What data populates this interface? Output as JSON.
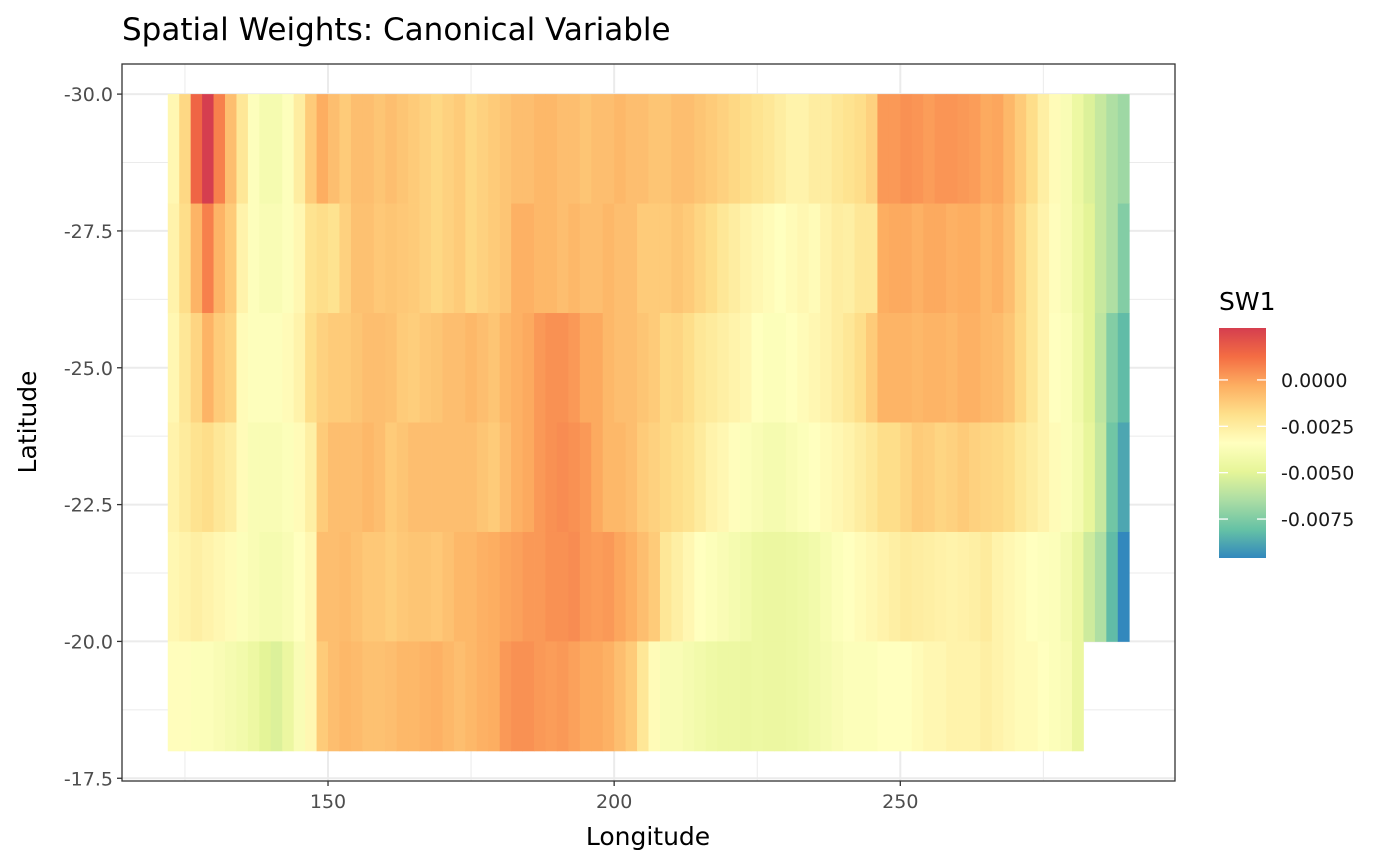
{
  "chart_data": {
    "type": "heatmap",
    "title": "Spatial Weights: Canonical Variable",
    "xlabel": "Longitude",
    "ylabel": "Latitude",
    "xlim": [
      114,
      298
    ],
    "ylim": [
      -30.55,
      -17.45
    ],
    "y_reversed": true,
    "x_ticks": [
      {
        "value": 150,
        "label": "150"
      },
      {
        "value": 200,
        "label": "200"
      },
      {
        "value": 250,
        "label": "250"
      }
    ],
    "y_ticks": [
      {
        "value": -30.0,
        "label": "-30.0"
      },
      {
        "value": -27.5,
        "label": "-27.5"
      },
      {
        "value": -25.0,
        "label": "-25.0"
      },
      {
        "value": -22.5,
        "label": "-22.5"
      },
      {
        "value": -20.0,
        "label": "-20.0"
      },
      {
        "value": -17.5,
        "label": "-17.5"
      }
    ],
    "grid": true,
    "cell_width": 2,
    "cell_height": 2,
    "row_latitudes": [
      -29,
      -27,
      -25,
      -23,
      -21,
      -19
    ],
    "column_longitudes": [
      123,
      125,
      127,
      129,
      131,
      133,
      135,
      137,
      139,
      141,
      143,
      145,
      147,
      149,
      151,
      153,
      155,
      157,
      159,
      161,
      163,
      165,
      167,
      169,
      171,
      173,
      175,
      177,
      179,
      181,
      183,
      185,
      187,
      189,
      191,
      193,
      195,
      197,
      199,
      201,
      203,
      205,
      207,
      209,
      211,
      213,
      215,
      217,
      219,
      221,
      223,
      225,
      227,
      229,
      231,
      233,
      235,
      237,
      239,
      241,
      243,
      245,
      247,
      249,
      251,
      253,
      255,
      257,
      259,
      261,
      263,
      265,
      267,
      269,
      271,
      273,
      275,
      277,
      279,
      281,
      283,
      285,
      287,
      289
    ],
    "values": [
      [
        -0.003,
        -0.0016,
        0.0015,
        0.0028,
        0.0008,
        -0.0008,
        -0.0022,
        -0.0035,
        -0.004,
        -0.004,
        -0.0035,
        -0.0025,
        -0.0012,
        -0.0003,
        -0.0008,
        -0.0012,
        -0.0008,
        -0.0008,
        -0.001,
        -0.0008,
        -0.001,
        -0.0012,
        -0.0014,
        -0.0016,
        -0.0014,
        -0.0012,
        -0.0016,
        -0.0014,
        -0.0012,
        -0.001,
        -0.0008,
        -0.0008,
        -0.0006,
        -0.0006,
        -0.0008,
        -0.0008,
        -0.001,
        -0.0008,
        -0.0008,
        -0.0006,
        -0.0008,
        -0.0008,
        -0.001,
        -0.001,
        -0.0008,
        -0.0008,
        -0.001,
        -0.0012,
        -0.0014,
        -0.0016,
        -0.0018,
        -0.002,
        -0.0022,
        -0.0025,
        -0.0028,
        -0.0028,
        -0.0025,
        -0.0025,
        -0.0022,
        -0.002,
        -0.0018,
        -0.0014,
        0.0002,
        0.0002,
        0.0004,
        0.0003,
        0.0001,
        0.0003,
        0.0003,
        0.0002,
        0.0001,
        -0.0002,
        -0.0001,
        -0.0006,
        -0.0012,
        -0.0018,
        -0.0026,
        -0.0032,
        -0.0038,
        -0.0045,
        -0.0052,
        -0.0058,
        -0.0064,
        -0.0068
      ],
      [
        -0.0028,
        -0.0018,
        -0.0005,
        0.0008,
        -0.0005,
        -0.0012,
        -0.0028,
        -0.0035,
        -0.0038,
        -0.0038,
        -0.0035,
        -0.003,
        -0.002,
        -0.0018,
        -0.002,
        -0.0014,
        -0.0009,
        -0.0009,
        -0.0011,
        -0.001,
        -0.0011,
        -0.0012,
        -0.0014,
        -0.0016,
        -0.0014,
        -0.0012,
        -0.0016,
        -0.0014,
        -0.0012,
        -0.001,
        -0.0004,
        -0.0004,
        -0.0006,
        -0.0006,
        -0.0008,
        -0.0006,
        -0.0008,
        -0.0008,
        -0.0006,
        -0.0008,
        -0.0008,
        -0.0012,
        -0.0012,
        -0.0012,
        -0.001,
        -0.0012,
        -0.0015,
        -0.0018,
        -0.0022,
        -0.0025,
        -0.0028,
        -0.003,
        -0.0032,
        -0.0034,
        -0.0032,
        -0.003,
        -0.0032,
        -0.0028,
        -0.0025,
        -0.0026,
        -0.0022,
        -0.0022,
        -0.0003,
        -0.0002,
        -0.0002,
        -0.0004,
        -0.0002,
        -0.0002,
        -0.0004,
        -0.0003,
        -0.0003,
        -0.0006,
        -0.0004,
        -0.0008,
        -0.0015,
        -0.0022,
        -0.0028,
        -0.0033,
        -0.0038,
        -0.0044,
        -0.005,
        -0.0058,
        -0.0064,
        -0.0074
      ],
      [
        -0.003,
        -0.0022,
        -0.0015,
        -0.0005,
        -0.0012,
        -0.0015,
        -0.0032,
        -0.0035,
        -0.0035,
        -0.0035,
        -0.0032,
        -0.0028,
        -0.0018,
        -0.0014,
        -0.0012,
        -0.0012,
        -0.001,
        -0.0008,
        -0.0008,
        -0.0009,
        -0.0012,
        -0.0013,
        -0.0011,
        -0.001,
        -0.0008,
        -0.0008,
        -0.0006,
        -0.0008,
        -0.001,
        -0.0006,
        -0.0004,
        -0.0002,
        0.0002,
        0.0004,
        0.0004,
        0.0002,
        -0.0002,
        -0.0002,
        -0.0006,
        -0.0008,
        -0.0008,
        -0.001,
        -0.0012,
        -0.0016,
        -0.0015,
        -0.0018,
        -0.0022,
        -0.0024,
        -0.0026,
        -0.0028,
        -0.003,
        -0.0034,
        -0.0036,
        -0.0036,
        -0.0034,
        -0.0032,
        -0.003,
        -0.0028,
        -0.0025,
        -0.0022,
        -0.0018,
        -0.0012,
        -0.0005,
        -0.0005,
        -0.0005,
        -0.0006,
        -0.0005,
        -0.0005,
        -0.0006,
        -0.0004,
        -0.0004,
        -0.0006,
        -0.0007,
        -0.001,
        -0.0016,
        -0.0022,
        -0.0028,
        -0.0034,
        -0.0036,
        -0.0042,
        -0.005,
        -0.006,
        -0.0074,
        -0.0082
      ],
      [
        -0.0028,
        -0.0024,
        -0.002,
        -0.0018,
        -0.0022,
        -0.0025,
        -0.0032,
        -0.0038,
        -0.0038,
        -0.0038,
        -0.0036,
        -0.0032,
        -0.0026,
        -0.0012,
        -0.0008,
        -0.0008,
        -0.0008,
        -0.0006,
        -0.0008,
        -0.0012,
        -0.001,
        -0.0008,
        -0.0008,
        -0.0008,
        -0.0008,
        -0.0008,
        -0.0008,
        -0.001,
        -0.0012,
        -0.0008,
        -0.0004,
        -0.0002,
        0.0002,
        0.0004,
        0.0005,
        0.0004,
        0.0002,
        -0.0002,
        -0.0006,
        -0.0006,
        -0.0008,
        -0.0012,
        -0.0014,
        -0.0016,
        -0.0018,
        -0.002,
        -0.0024,
        -0.0028,
        -0.003,
        -0.0033,
        -0.0036,
        -0.0038,
        -0.004,
        -0.004,
        -0.0038,
        -0.0036,
        -0.0034,
        -0.0032,
        -0.003,
        -0.0028,
        -0.0025,
        -0.0022,
        -0.0018,
        -0.0018,
        -0.0015,
        -0.0012,
        -0.0013,
        -0.0015,
        -0.0014,
        -0.0012,
        -0.0014,
        -0.0015,
        -0.0016,
        -0.0018,
        -0.0022,
        -0.0025,
        -0.0028,
        -0.0032,
        -0.0036,
        -0.004,
        -0.0048,
        -0.0058,
        -0.0078,
        -0.0088
      ],
      [
        -0.003,
        -0.0028,
        -0.0026,
        -0.0028,
        -0.003,
        -0.0032,
        -0.0036,
        -0.0038,
        -0.004,
        -0.004,
        -0.0038,
        -0.0034,
        -0.003,
        -0.0008,
        -0.0008,
        -0.0007,
        -0.0009,
        -0.0011,
        -0.0011,
        -0.0013,
        -0.0011,
        -0.001,
        -0.001,
        -0.0011,
        -0.0009,
        -0.0006,
        -0.0006,
        -0.0004,
        -0.0003,
        -0.0001,
        0.0,
        0.0002,
        0.0002,
        0.0004,
        0.0004,
        0.0005,
        0.0002,
        0.0001,
        0.0002,
        -0.0001,
        -0.0004,
        -0.0008,
        -0.0012,
        -0.0022,
        -0.0026,
        -0.003,
        -0.0034,
        -0.0036,
        -0.0038,
        -0.004,
        -0.0042,
        -0.0045,
        -0.0046,
        -0.0046,
        -0.0045,
        -0.0044,
        -0.0042,
        -0.0039,
        -0.0036,
        -0.0034,
        -0.0032,
        -0.003,
        -0.0028,
        -0.0026,
        -0.0024,
        -0.0025,
        -0.0026,
        -0.0027,
        -0.0028,
        -0.0027,
        -0.0026,
        -0.0024,
        -0.0028,
        -0.003,
        -0.0032,
        -0.0034,
        -0.0035,
        -0.0036,
        -0.004,
        -0.0046,
        -0.0056,
        -0.0064,
        -0.0082,
        -0.0096
      ],
      [
        -0.0033,
        -0.0033,
        -0.0036,
        -0.0036,
        -0.0038,
        -0.004,
        -0.0042,
        -0.0045,
        -0.005,
        -0.0052,
        -0.0046,
        -0.0038,
        -0.003,
        -0.0012,
        -0.0008,
        -0.0006,
        -0.0007,
        -0.0009,
        -0.0009,
        -0.0008,
        -0.0006,
        -0.0006,
        -0.0005,
        -0.0004,
        -0.0006,
        -0.0008,
        -0.0006,
        -0.0004,
        -0.0003,
        0.0002,
        0.0004,
        0.0004,
        0.0002,
        0.0001,
        0.0002,
        0.0,
        -0.0002,
        -0.0002,
        -0.0004,
        -0.0008,
        -0.0012,
        -0.0022,
        -0.0032,
        -0.0038,
        -0.0038,
        -0.004,
        -0.0042,
        -0.0044,
        -0.0045,
        -0.0045,
        -0.0046,
        -0.0045,
        -0.0046,
        -0.0046,
        -0.0045,
        -0.0044,
        -0.0042,
        -0.004,
        -0.0038,
        -0.0036,
        -0.0036,
        -0.0036,
        -0.0034,
        -0.0034,
        -0.0034,
        -0.0032,
        -0.003,
        -0.003,
        -0.0028,
        -0.0028,
        -0.0028,
        -0.0026,
        -0.0028,
        -0.003,
        -0.0032,
        -0.0032,
        -0.0034,
        -0.0036,
        -0.0038,
        -0.0046,
        null,
        null,
        null,
        null
      ]
    ],
    "legend": {
      "title": "SW1",
      "position": "right",
      "limits": [
        -0.0096,
        0.0028
      ],
      "breaks": [
        {
          "value": 0.0,
          "label": "0.0000"
        },
        {
          "value": -0.0025,
          "label": "-0.0025"
        },
        {
          "value": -0.005,
          "label": "-0.0050"
        },
        {
          "value": -0.0075,
          "label": "-0.0075"
        }
      ],
      "palette": "Spectral",
      "colors": [
        "#3288bd",
        "#66c2a5",
        "#abdda4",
        "#e6f598",
        "#ffffbf",
        "#fee08b",
        "#fdae61",
        "#f46d43",
        "#d53e4f"
      ]
    }
  }
}
